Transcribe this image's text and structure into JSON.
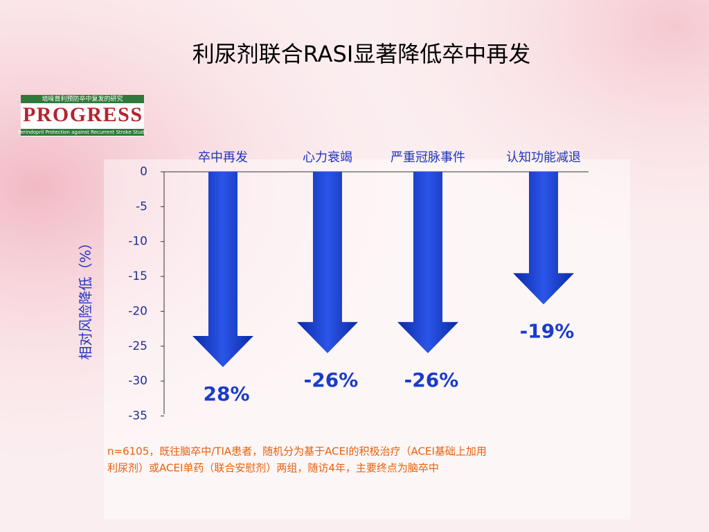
{
  "title": "利尿剂联合RASI显著降低卒中再发",
  "logo": {
    "subtitle": "培哚普利预防卒中复发的研究",
    "name": "PROGRESS",
    "caption": "Perindopril Protection against Recurrent Stroke Study"
  },
  "chart_data": {
    "type": "arrow",
    "y_label": "相对风险降低（%）",
    "categories": [
      "卒中再发",
      "心力衰竭",
      "严重冠脉事件",
      "认知功能减退"
    ],
    "values": [
      -28,
      -26,
      -26,
      -19
    ],
    "value_labels": [
      "28%",
      "-26%",
      "-26%",
      "-19%"
    ],
    "color": "#1a3cc8",
    "ylim": [
      -35,
      0
    ],
    "yticks": [
      0,
      -5,
      -10,
      -15,
      -20,
      -25,
      -30,
      -35
    ]
  },
  "footnote": {
    "lines": [
      "n=6105，既往脑卒中/TIA患者，随机分为基于ACEI的积极治疗（ACEI基础上加用",
      "利尿剂）或ACEI单药（联合安慰剂）两组，随访4年，主要终点为脑卒中"
    ]
  }
}
